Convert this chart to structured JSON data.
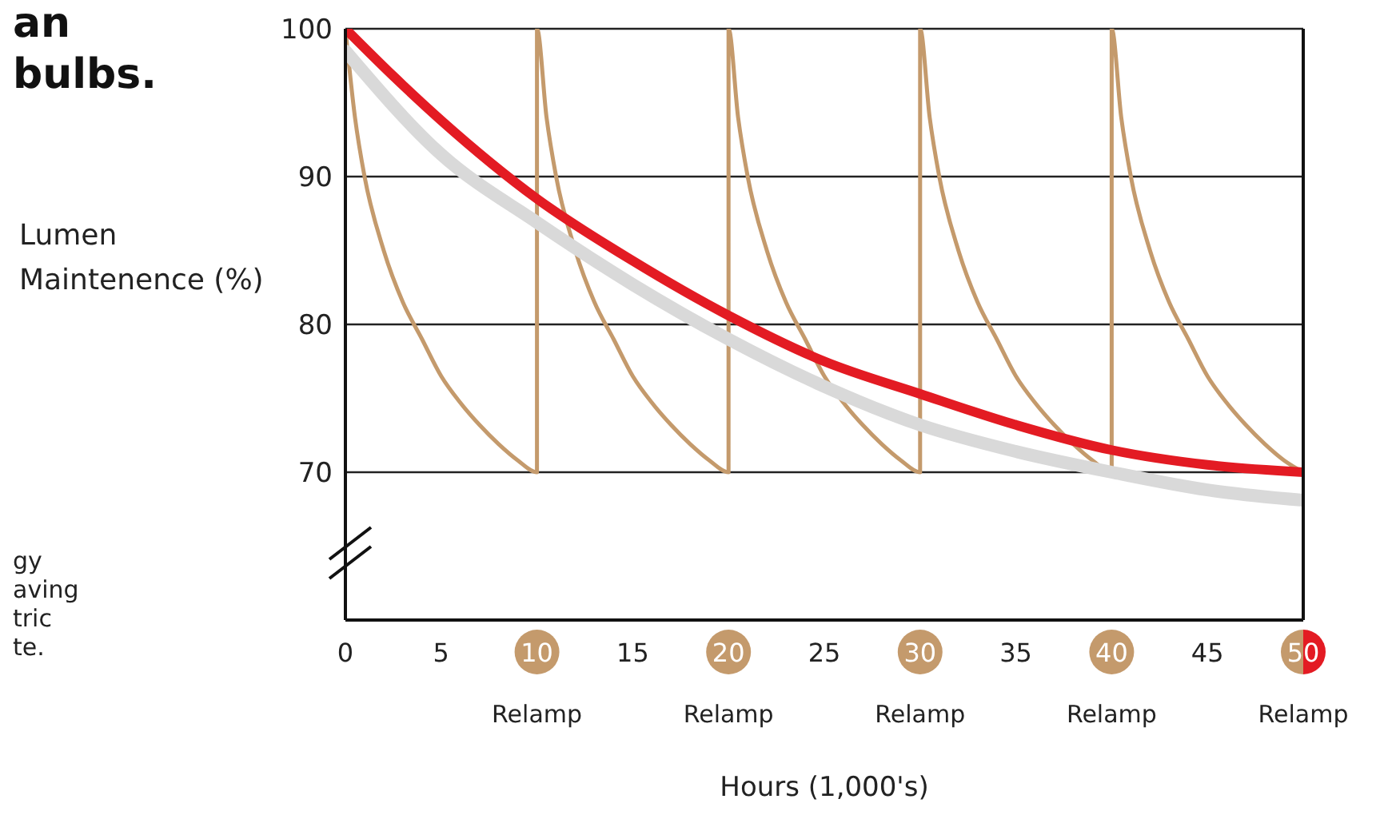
{
  "chart_data": {
    "type": "line",
    "xlabel": "Hours (1,000's)",
    "ylabel": "Lumen Maintenence (%)",
    "annotations": [
      "an",
      "bulbs.",
      "gy",
      "aving",
      "tric",
      "te.",
      "Relamp",
      "Relamp",
      "Relamp",
      "Relamp",
      "Relamp"
    ],
    "series": [
      {
        "color": "#c49a6c",
        "x": [
          0,
          0.5,
          1,
          2,
          3,
          4,
          5,
          6,
          7,
          8,
          9,
          10,
          10,
          10.5,
          11,
          12,
          13,
          14,
          15,
          16,
          17,
          18,
          19,
          20,
          20,
          20.5,
          21,
          22,
          23,
          24,
          25,
          26,
          27,
          28,
          29,
          30,
          30,
          30.5,
          31,
          32,
          33,
          34,
          35,
          36,
          37,
          38,
          39,
          40,
          40,
          40.5,
          41,
          42,
          43,
          44,
          45,
          46,
          47,
          48,
          49,
          50
        ],
        "values": [
          100,
          94,
          90,
          85,
          81.5,
          79,
          76.5,
          74.7,
          73.2,
          71.9,
          70.8,
          70,
          100,
          94,
          90,
          85,
          81.5,
          79,
          76.5,
          74.7,
          73.2,
          71.9,
          70.8,
          70,
          100,
          94,
          90,
          85,
          81.5,
          79,
          76.5,
          74.7,
          73.2,
          71.9,
          70.8,
          70,
          100,
          94,
          90,
          85,
          81.5,
          79,
          76.5,
          74.7,
          73.2,
          71.9,
          70.8,
          70,
          100,
          94,
          90,
          85,
          81.5,
          79,
          76.5,
          74.7,
          73.2,
          71.9,
          70.8,
          70
        ]
      },
      {
        "color": "#d9d9d9",
        "x": [
          0,
          5,
          10,
          15,
          20,
          25,
          30,
          35,
          40,
          45,
          50
        ],
        "values": [
          98.5,
          91.5,
          86.9,
          82.7,
          79,
          75.8,
          73.2,
          71.4,
          70,
          68.8,
          68.1
        ]
      },
      {
        "color": "#e31b23",
        "x": [
          0,
          2.5,
          5,
          10,
          15,
          20,
          25,
          30,
          35,
          40,
          45,
          50
        ],
        "values": [
          100,
          96.8,
          93.8,
          88.5,
          84.3,
          80.6,
          77.5,
          75.3,
          73.2,
          71.5,
          70.5,
          70
        ]
      }
    ],
    "xlim": [
      0,
      50
    ],
    "xticks": [
      0,
      5,
      10,
      15,
      20,
      25,
      30,
      35,
      40,
      45,
      50
    ],
    "ylim": [
      60,
      100
    ],
    "yticks": [
      70,
      80,
      90,
      100
    ],
    "grid": "y",
    "legend": false,
    "marker": "none",
    "line_style": "solid"
  }
}
